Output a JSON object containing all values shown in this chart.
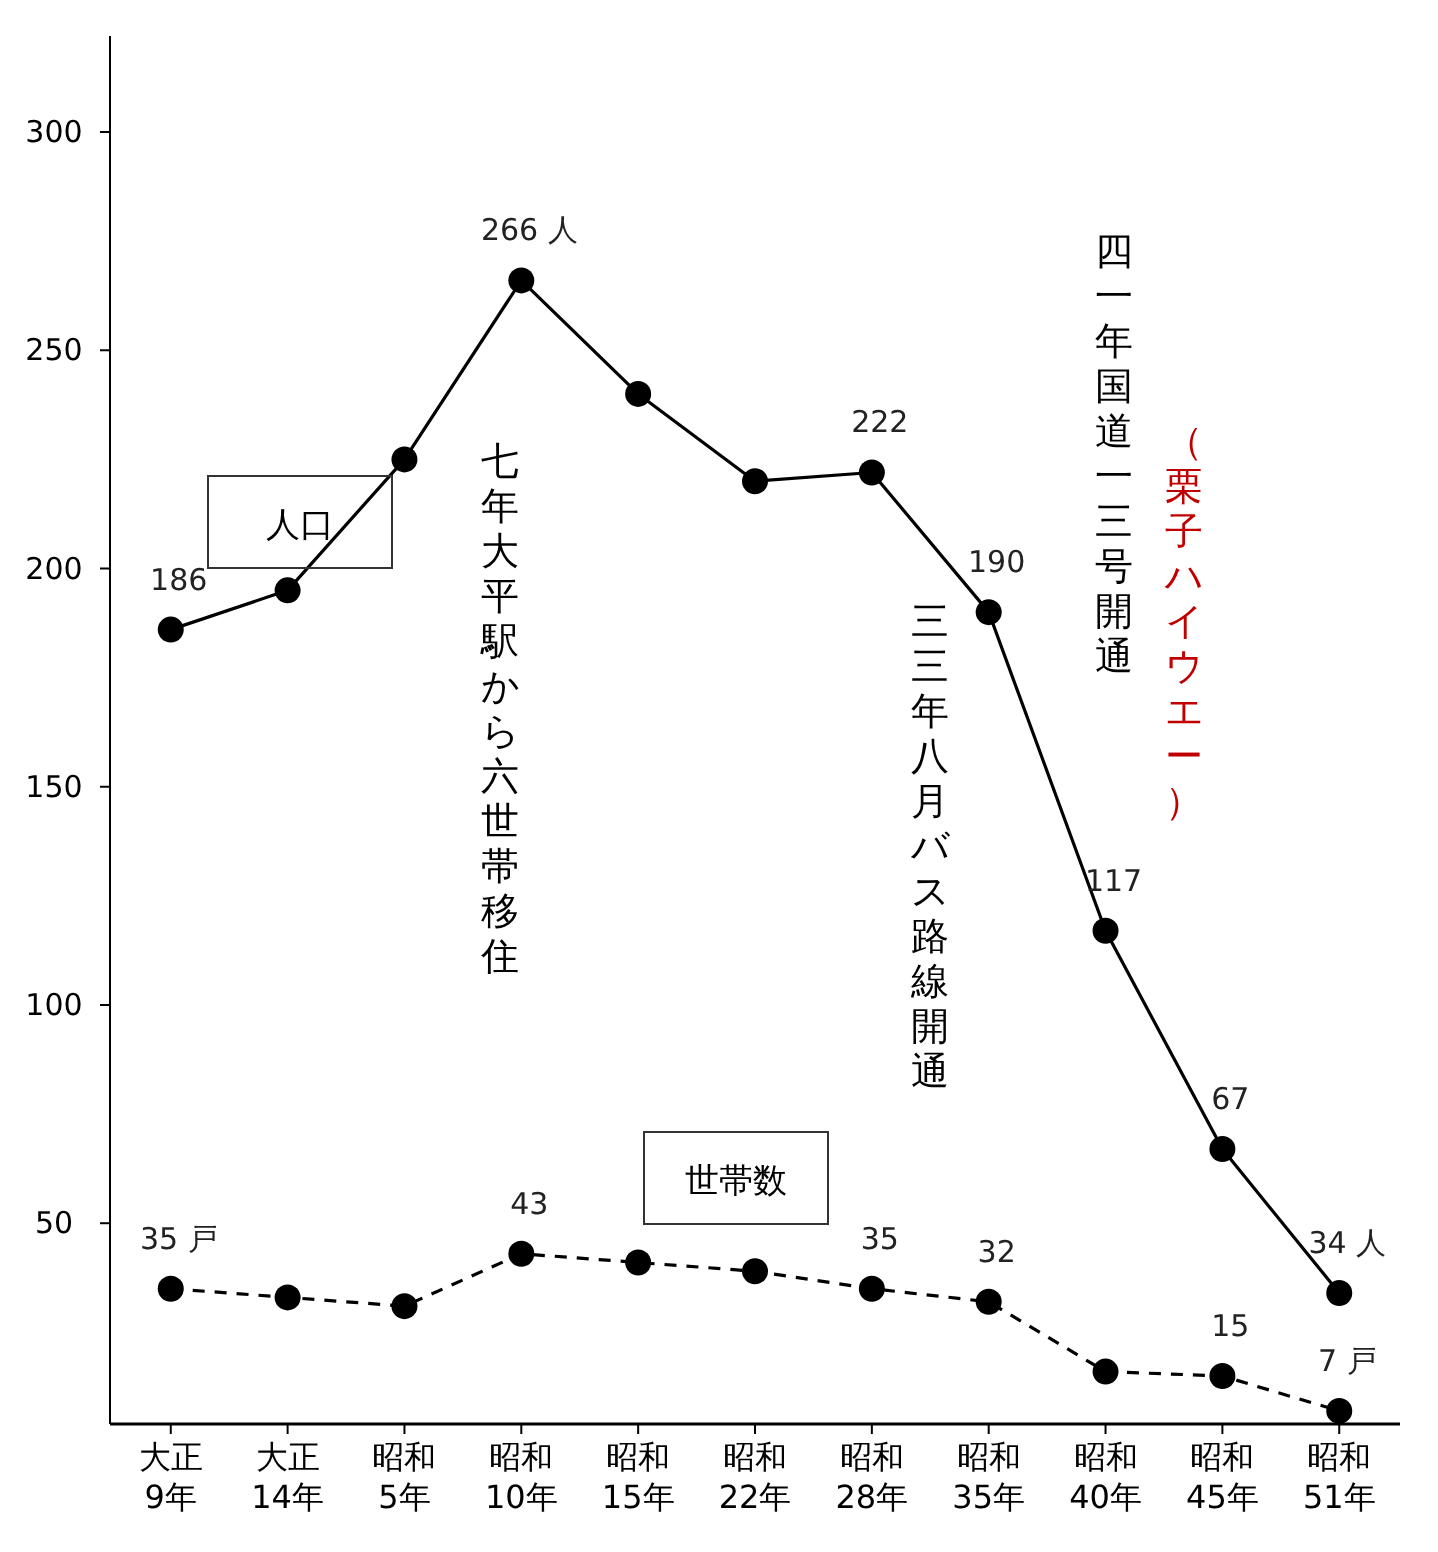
{
  "chart_data": {
    "type": "line",
    "categories": [
      "大正\n9年",
      "大正\n14年",
      "昭和\n5年",
      "昭和\n10年",
      "昭和\n15年",
      "昭和\n22年",
      "昭和\n28年",
      "昭和\n35年",
      "昭和\n40年",
      "昭和\n45年",
      "昭和\n51年"
    ],
    "series": [
      {
        "name": "人口",
        "color": "#000000",
        "line_style": "solid",
        "values": [
          186,
          195,
          225,
          266,
          240,
          220,
          222,
          190,
          117,
          67,
          34
        ],
        "value_labels": [
          "186",
          null,
          null,
          "266 人",
          null,
          null,
          "222",
          "190",
          "117",
          "67",
          "34 人"
        ]
      },
      {
        "name": "世帯数",
        "color": "#000000",
        "line_style": "dashed",
        "values": [
          35,
          33,
          31,
          43,
          41,
          39,
          35,
          32,
          16,
          15,
          7
        ],
        "value_labels": [
          "35 戸",
          null,
          null,
          "43",
          null,
          null,
          "35",
          "32",
          null,
          "15",
          "7 戸"
        ]
      }
    ],
    "marker": "circle",
    "ylim": [
      4,
      322
    ],
    "yticks": [
      50,
      100,
      150,
      200,
      250,
      300
    ],
    "annotations": [
      "七年大平駅から六世帯移住",
      "三三年八月バス路線開通",
      "四一年国道一三号開通",
      "（栗子ハイウエー）"
    ]
  }
}
